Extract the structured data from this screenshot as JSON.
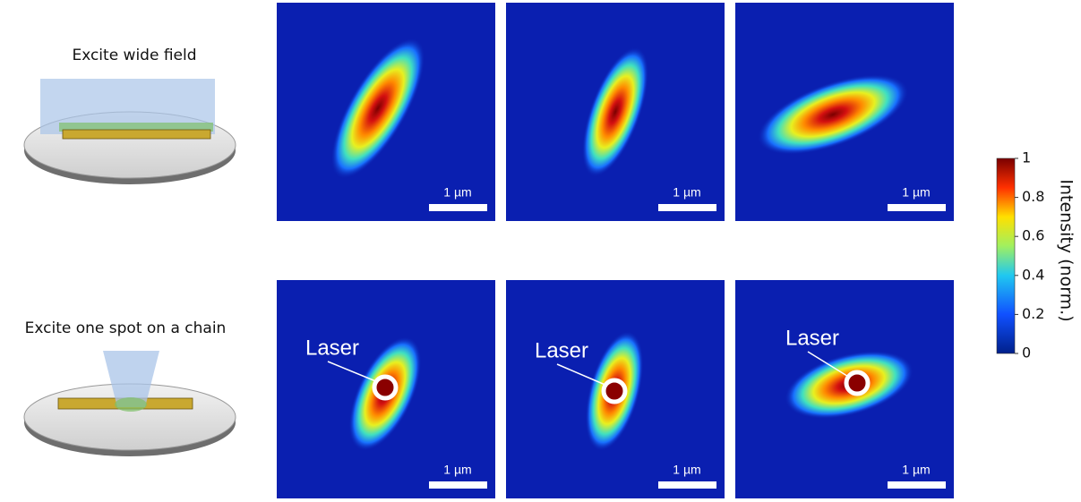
{
  "rows": [
    {
      "label": "Excite wide field",
      "panels": [
        {
          "scale_bar": "1 µm"
        },
        {
          "scale_bar": "1 µm"
        },
        {
          "scale_bar": "1 µm"
        }
      ]
    },
    {
      "label": "Excite one spot on a chain",
      "panels": [
        {
          "scale_bar": "1 µm",
          "annotation": "Laser"
        },
        {
          "scale_bar": "1 µm",
          "annotation": "Laser"
        },
        {
          "scale_bar": "1 µm",
          "annotation": "Laser"
        }
      ]
    }
  ],
  "colorbar": {
    "label": "Intensity (norm.)",
    "ticks": [
      0,
      0.2,
      0.4,
      0.6,
      0.8,
      1
    ]
  }
}
